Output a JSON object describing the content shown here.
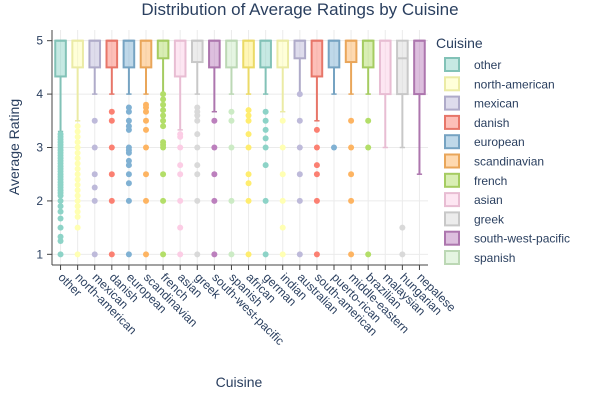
{
  "chart_data": {
    "type": "box",
    "title": "Distribution of Average Ratings by Cuisine",
    "xlabel": "Cuisine",
    "ylabel": "Average Rating",
    "ylim": [
      0.8,
      5.2
    ],
    "yticks": [
      1,
      2,
      3,
      4,
      5
    ],
    "grid": true,
    "legend": {
      "title": "Cuisine",
      "placement": "right"
    },
    "categories": [
      "other",
      "north-american",
      "mexican",
      "danish",
      "european",
      "scandinavian",
      "french",
      "asian",
      "greek",
      "south-west-pacific",
      "spanish",
      "african",
      "german",
      "indian",
      "australian",
      "south-american",
      "puerto-rican",
      "middle-eastern",
      "brazilian",
      "malaysian",
      "hungarian",
      "nepalese"
    ],
    "series": [
      {
        "name": "other",
        "color": "#8dd3c7",
        "q1": 4.33,
        "median": 5.0,
        "q3": 5.0,
        "whisker_low": 3.3,
        "whisker_high": 5.0,
        "outliers": [
          3.25,
          3.2,
          3.15,
          3.1,
          3.05,
          3.0,
          2.95,
          2.9,
          2.85,
          2.8,
          2.75,
          2.7,
          2.65,
          2.6,
          2.55,
          2.5,
          2.45,
          2.4,
          2.35,
          2.3,
          2.25,
          2.2,
          2.15,
          2.1,
          2.0,
          1.9,
          1.8,
          1.67,
          1.5,
          1.33,
          1.25,
          1.0
        ]
      },
      {
        "name": "north-american",
        "color": "#ffffb3",
        "q1": 4.5,
        "median": 5.0,
        "q3": 5.0,
        "whisker_low": 3.5,
        "whisker_high": 5.0,
        "outliers": [
          3.4,
          3.3,
          3.2,
          3.1,
          3.0,
          2.9,
          2.8,
          2.7,
          2.6,
          2.5,
          2.4,
          2.3,
          2.2,
          2.1,
          2.0,
          1.9,
          1.8,
          1.7,
          1.5,
          1.0
        ]
      },
      {
        "name": "mexican",
        "color": "#bebada",
        "q1": 4.5,
        "median": 5.0,
        "q3": 5.0,
        "whisker_low": 4.0,
        "whisker_high": 5.0,
        "outliers": [
          3.5,
          3.0,
          2.5,
          2.25,
          2.0,
          1.0
        ]
      },
      {
        "name": "danish",
        "color": "#fb8072",
        "q1": 4.5,
        "median": 5.0,
        "q3": 5.0,
        "whisker_low": 4.0,
        "whisker_high": 5.0,
        "outliers": [
          3.67,
          3.5,
          3.0,
          2.5,
          2.0,
          1.0
        ]
      },
      {
        "name": "european",
        "color": "#80b1d3",
        "q1": 4.5,
        "median": 5.0,
        "q3": 5.0,
        "whisker_low": 4.0,
        "whisker_high": 5.0,
        "outliers": [
          3.75,
          3.67,
          3.5,
          3.4,
          3.33,
          3.0,
          2.95,
          2.9,
          2.75,
          2.67,
          2.5,
          2.33,
          2.0,
          1.0
        ]
      },
      {
        "name": "scandinavian",
        "color": "#fdb462",
        "q1": 4.5,
        "median": 5.0,
        "q3": 5.0,
        "whisker_low": 4.0,
        "whisker_high": 5.0,
        "outliers": [
          3.8,
          3.75,
          3.67,
          3.5,
          3.33,
          3.0,
          2.5,
          2.0,
          1.0
        ]
      },
      {
        "name": "french",
        "color": "#b3de69",
        "q1": 4.67,
        "median": 5.0,
        "q3": 5.0,
        "whisker_low": 4.0,
        "whisker_high": 5.0,
        "outliers": [
          4.0,
          3.9,
          3.8,
          3.7,
          3.6,
          3.5,
          3.4,
          3.1,
          3.05,
          3.0,
          2.5,
          2.0,
          1.0
        ]
      },
      {
        "name": "asian",
        "color": "#fccde5",
        "q1": 4.33,
        "median": 5.0,
        "q3": 5.0,
        "whisker_low": 3.33,
        "whisker_high": 5.0,
        "outliers": [
          3.25,
          3.2,
          3.0,
          2.67,
          2.5,
          2.0,
          1.5,
          1.0
        ]
      },
      {
        "name": "greek",
        "color": "#d9d9d9",
        "q1": 4.6,
        "median": 5.0,
        "q3": 5.0,
        "whisker_low": 4.0,
        "whisker_high": 5.0,
        "outliers": [
          3.75,
          3.67,
          3.6,
          3.5,
          3.25,
          3.0,
          2.67,
          2.5,
          2.0,
          1.0
        ]
      },
      {
        "name": "south-west-pacific",
        "color": "#bc80bd",
        "q1": 4.5,
        "median": 5.0,
        "q3": 5.0,
        "whisker_low": 3.67,
        "whisker_high": 5.0,
        "outliers": [
          3.5,
          3.0,
          2.5,
          2.0,
          1.0
        ]
      },
      {
        "name": "spanish",
        "color": "#ccebc5",
        "q1": 4.5,
        "median": 5.0,
        "q3": 5.0,
        "whisker_low": 4.0,
        "whisker_high": 5.0,
        "outliers": [
          3.67,
          3.5,
          3.0,
          2.0,
          1.0
        ]
      },
      {
        "name": "african",
        "color": "#ffed6f",
        "q1": 4.5,
        "median": 5.0,
        "q3": 5.0,
        "whisker_low": 4.0,
        "whisker_high": 5.0,
        "outliers": [
          3.7,
          3.6,
          3.5,
          3.25,
          3.0,
          2.5,
          2.33,
          2.0,
          1.0
        ]
      },
      {
        "name": "german",
        "color": "#8dd3c7",
        "q1": 4.5,
        "median": 5.0,
        "q3": 5.0,
        "whisker_low": 4.0,
        "whisker_high": 5.0,
        "outliers": [
          3.67,
          3.5,
          3.33,
          3.17,
          3.0,
          2.67,
          2.0,
          1.0
        ]
      },
      {
        "name": "indian",
        "color": "#ffffb3",
        "q1": 4.5,
        "median": 5.0,
        "q3": 5.0,
        "whisker_low": 3.67,
        "whisker_high": 5.0,
        "outliers": [
          3.5,
          3.0,
          2.5,
          2.0,
          1.5,
          1.0
        ]
      },
      {
        "name": "australian",
        "color": "#bebada",
        "q1": 4.67,
        "median": 5.0,
        "q3": 5.0,
        "whisker_low": 4.0,
        "whisker_high": 5.0,
        "outliers": [
          4.0,
          3.5,
          3.0,
          2.5,
          2.0,
          1.0
        ]
      },
      {
        "name": "south-american",
        "color": "#fb8072",
        "q1": 4.33,
        "median": 5.0,
        "q3": 5.0,
        "whisker_low": 3.5,
        "whisker_high": 5.0,
        "outliers": [
          3.33,
          3.0,
          2.67,
          2.5,
          2.0,
          1.0
        ]
      },
      {
        "name": "puerto-rican",
        "color": "#80b1d3",
        "q1": 4.5,
        "median": 5.0,
        "q3": 5.0,
        "whisker_low": 4.0,
        "whisker_high": 5.0,
        "outliers": [
          3.0
        ]
      },
      {
        "name": "middle-eastern",
        "color": "#fdb462",
        "q1": 4.6,
        "median": 5.0,
        "q3": 5.0,
        "whisker_low": 4.0,
        "whisker_high": 5.0,
        "outliers": [
          3.5,
          3.0,
          2.5,
          2.0,
          1.0
        ]
      },
      {
        "name": "brazilian",
        "color": "#b3de69",
        "q1": 4.5,
        "median": 5.0,
        "q3": 5.0,
        "whisker_low": 4.0,
        "whisker_high": 5.0,
        "outliers": [
          3.5,
          3.0,
          1.0
        ]
      },
      {
        "name": "malaysian",
        "color": "#fccde5",
        "q1": 4.0,
        "median": 5.0,
        "q3": 5.0,
        "whisker_low": 3.0,
        "whisker_high": 5.0,
        "outliers": []
      },
      {
        "name": "hungarian",
        "color": "#d9d9d9",
        "q1": 4.0,
        "median": 4.67,
        "q3": 5.0,
        "whisker_low": 3.0,
        "whisker_high": 5.0,
        "outliers": [
          1.5,
          1.0
        ]
      },
      {
        "name": "nepalese",
        "color": "#bc80bd",
        "q1": 4.0,
        "median": 5.0,
        "q3": 5.0,
        "whisker_low": 2.5,
        "whisker_high": 5.0,
        "outliers": []
      }
    ],
    "legend_entries": [
      "other",
      "north-american",
      "mexican",
      "danish",
      "european",
      "scandinavian",
      "french",
      "asian",
      "greek",
      "south-west-pacific",
      "spanish"
    ]
  }
}
